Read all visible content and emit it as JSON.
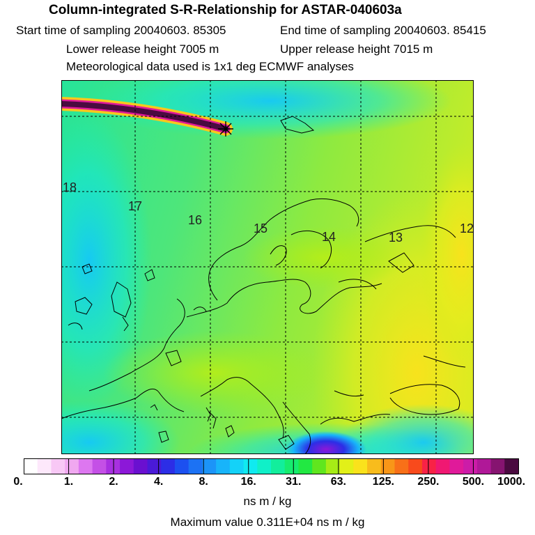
{
  "header": {
    "title": "Column-integrated S-R-Relationship for ASTAR-040603a",
    "start_time": "Start time of sampling 20040603. 85305",
    "end_time": "End time of sampling 20040603. 85415",
    "lower_release": "Lower release height 7005 m",
    "upper_release": "Upper release height 7015 m",
    "met_data": "Meteorological data used is 1x1 deg ECMWF analyses"
  },
  "map": {
    "contour_labels": [
      {
        "text": "18"
      },
      {
        "text": "17"
      },
      {
        "text": "16"
      },
      {
        "text": "15"
      },
      {
        "text": "14"
      },
      {
        "text": "13"
      },
      {
        "text": "12"
      }
    ],
    "release_marker": "star-marker"
  },
  "colorbar": {
    "tick_labels": [
      "0.",
      "1.",
      "2.",
      "4.",
      "8.",
      "16.",
      "31.",
      "63.",
      "125.",
      "250.",
      "500.",
      "1000."
    ],
    "colors": [
      "#ffffff",
      "#fde8fb",
      "#f8c8f5",
      "#f0a8f0",
      "#dd77f0",
      "#c450e6",
      "#a830e0",
      "#8c18d8",
      "#6a10d0",
      "#4a1ad8",
      "#2c2ee6",
      "#1c50f0",
      "#1c72f4",
      "#1c94f8",
      "#18b4fa",
      "#14d2f8",
      "#10eaf0",
      "#10f0c8",
      "#12ee9c",
      "#16ec6e",
      "#22e842",
      "#60e61e",
      "#a6ec16",
      "#e2f018",
      "#fae21c",
      "#f8bc1c",
      "#f89618",
      "#f87018",
      "#f84a1c",
      "#f82246",
      "#f01872",
      "#e01a9a",
      "#cc1ca8",
      "#b01898",
      "#861470",
      "#4a0a40"
    ],
    "unit": "ns m / kg"
  },
  "max_value": "Maximum value  0.311E+04 ns m / kg"
}
